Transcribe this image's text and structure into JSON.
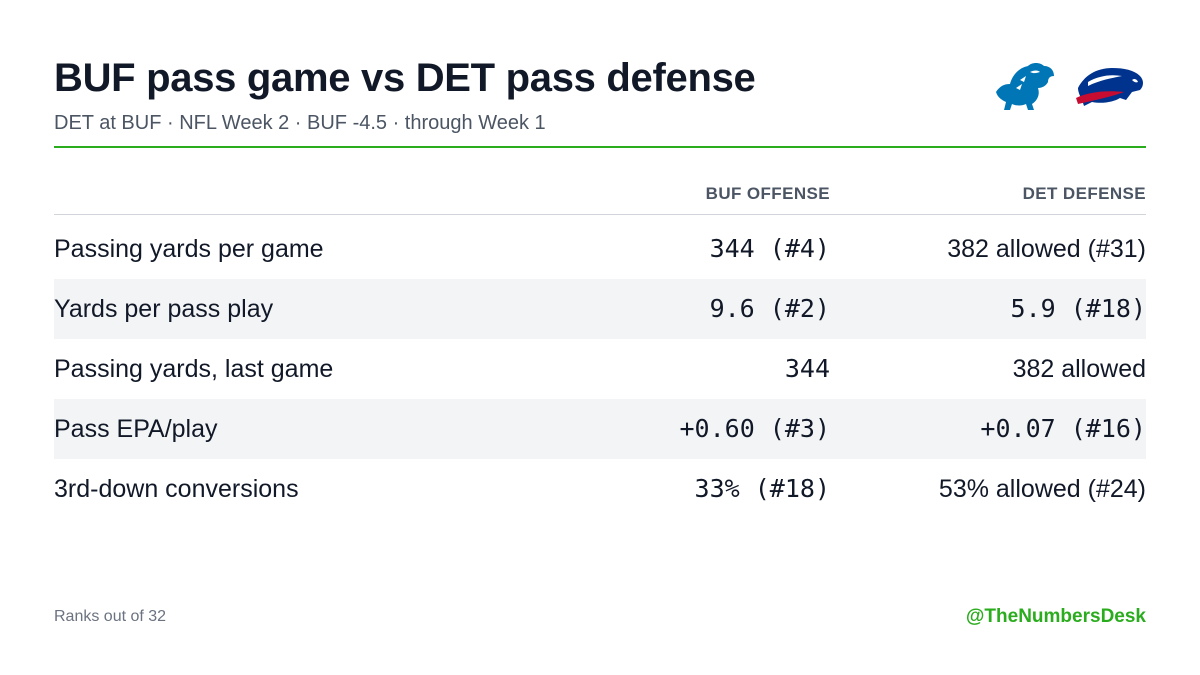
{
  "header": {
    "title": "BUF pass game vs DET pass defense",
    "subtitle": "DET at BUF · NFL Week 2 · BUF -4.5 · through Week 1"
  },
  "logos": [
    {
      "team": "DET",
      "icon": "lion-logo-icon",
      "color": "#0076B6"
    },
    {
      "team": "BUF",
      "icon": "bison-logo-icon",
      "color": "#00338D",
      "accent": "#C60C30"
    }
  ],
  "table": {
    "columns": [
      "BUF OFFENSE",
      "DET DEFENSE"
    ],
    "rows": [
      {
        "label": "Passing yards per game",
        "offense": "344 (#4)",
        "defense": "382 allowed (#31)"
      },
      {
        "label": "Yards per pass play",
        "offense": "9.6 (#2)",
        "defense": "5.9 (#18)"
      },
      {
        "label": "Passing yards, last game",
        "offense": "344",
        "defense": "382 allowed"
      },
      {
        "label": "Pass EPA/play",
        "offense": "+0.60 (#3)",
        "defense": "+0.07 (#16)"
      },
      {
        "label": "3rd-down conversions",
        "offense": "33% (#18)",
        "defense": "53% allowed (#24)"
      }
    ]
  },
  "colors": {
    "accent": "#2bac1e",
    "good": "#2e9a4a",
    "bad": "#cc3333"
  },
  "footer": {
    "note": "Ranks out of 32",
    "handle": "@TheNumbersDesk"
  }
}
